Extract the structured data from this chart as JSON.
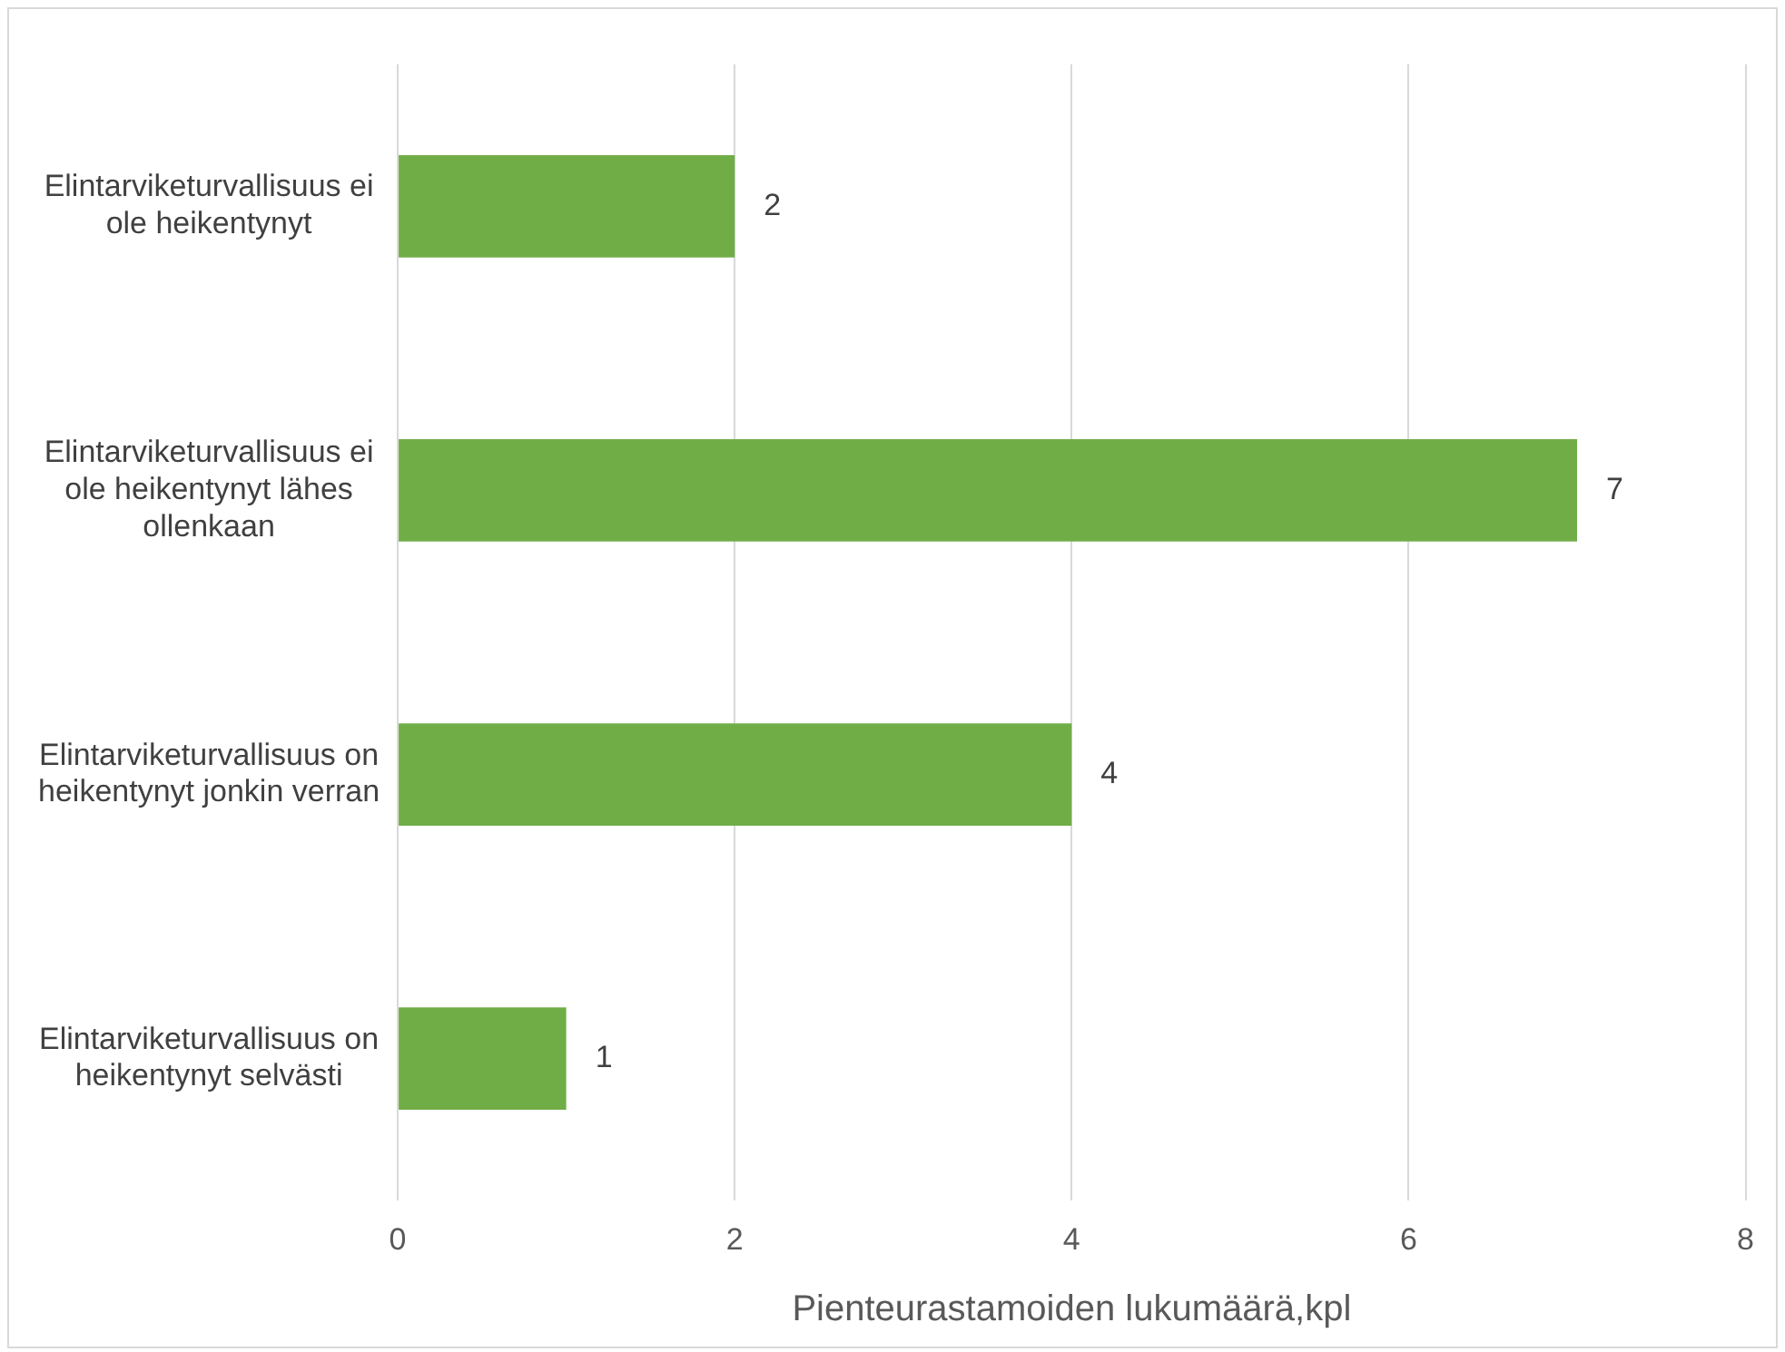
{
  "chart_data": {
    "type": "bar",
    "orientation": "horizontal",
    "xlabel": "Pienteurastamoiden lukumäärä,kpl",
    "categories": [
      "Elintarviketurvallisuus ei ole heikentynyt",
      "Elintarviketurvallisuus ei ole heikentynyt lähes ollenkaan",
      "Elintarviketurvallisuus on heikentynyt jonkin verran",
      "Elintarviketurvallisuus on heikentynyt selvästi"
    ],
    "values": [
      2,
      7,
      4,
      1
    ],
    "color": "#70ad47",
    "xlim": [
      0,
      8
    ],
    "xticks": [
      0,
      2,
      4,
      6,
      8
    ],
    "grid": "x",
    "data_labels": true,
    "legend": false
  }
}
